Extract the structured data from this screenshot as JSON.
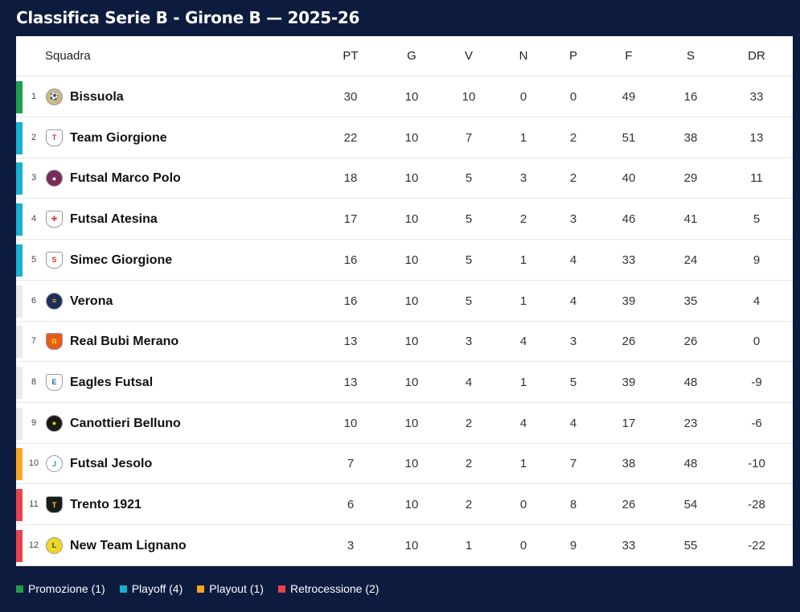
{
  "title": "Classifica Serie B - Girone B — 2025-26",
  "headers": {
    "team": "Squadra",
    "pt": "PT",
    "g": "G",
    "v": "V",
    "n": "N",
    "p": "P",
    "f": "F",
    "s": "S",
    "dr": "DR"
  },
  "zone_colors": {
    "promozione": "#1e9e4a",
    "playoff": "#17b0cf",
    "playout": "#f5a623",
    "retrocessione": "#e8434d",
    "none": "#e9e9e9"
  },
  "rows": [
    {
      "pos": "1",
      "team": "Bissuola",
      "zone": "promozione",
      "logo": "bissuola-logo",
      "pt": "30",
      "g": "10",
      "v": "10",
      "n": "0",
      "p": "0",
      "f": "49",
      "s": "16",
      "dr": "33"
    },
    {
      "pos": "2",
      "team": "Team Giorgione",
      "zone": "playoff",
      "logo": "team-giorgione-logo",
      "pt": "22",
      "g": "10",
      "v": "7",
      "n": "1",
      "p": "2",
      "f": "51",
      "s": "38",
      "dr": "13"
    },
    {
      "pos": "3",
      "team": "Futsal Marco Polo",
      "zone": "playoff",
      "logo": "futsal-marco-polo-logo",
      "pt": "18",
      "g": "10",
      "v": "5",
      "n": "3",
      "p": "2",
      "f": "40",
      "s": "29",
      "dr": "11"
    },
    {
      "pos": "4",
      "team": "Futsal Atesina",
      "zone": "playoff",
      "logo": "futsal-atesina-logo",
      "pt": "17",
      "g": "10",
      "v": "5",
      "n": "2",
      "p": "3",
      "f": "46",
      "s": "41",
      "dr": "5"
    },
    {
      "pos": "5",
      "team": "Simec Giorgione",
      "zone": "playoff",
      "logo": "simec-giorgione-logo",
      "pt": "16",
      "g": "10",
      "v": "5",
      "n": "1",
      "p": "4",
      "f": "33",
      "s": "24",
      "dr": "9"
    },
    {
      "pos": "6",
      "team": "Verona",
      "zone": "none",
      "logo": "verona-logo",
      "pt": "16",
      "g": "10",
      "v": "5",
      "n": "1",
      "p": "4",
      "f": "39",
      "s": "35",
      "dr": "4"
    },
    {
      "pos": "7",
      "team": "Real Bubi Merano",
      "zone": "none",
      "logo": "real-bubi-merano-logo",
      "pt": "13",
      "g": "10",
      "v": "3",
      "n": "4",
      "p": "3",
      "f": "26",
      "s": "26",
      "dr": "0"
    },
    {
      "pos": "8",
      "team": "Eagles Futsal",
      "zone": "none",
      "logo": "eagles-futsal-logo",
      "pt": "13",
      "g": "10",
      "v": "4",
      "n": "1",
      "p": "5",
      "f": "39",
      "s": "48",
      "dr": "-9"
    },
    {
      "pos": "9",
      "team": "Canottieri Belluno",
      "zone": "none",
      "logo": "canottieri-belluno-logo",
      "pt": "10",
      "g": "10",
      "v": "2",
      "n": "4",
      "p": "4",
      "f": "17",
      "s": "23",
      "dr": "-6"
    },
    {
      "pos": "10",
      "team": "Futsal Jesolo",
      "zone": "playout",
      "logo": "futsal-jesolo-logo",
      "pt": "7",
      "g": "10",
      "v": "2",
      "n": "1",
      "p": "7",
      "f": "38",
      "s": "48",
      "dr": "-10"
    },
    {
      "pos": "11",
      "team": "Trento 1921",
      "zone": "retrocessione",
      "logo": "trento-1921-logo",
      "pt": "6",
      "g": "10",
      "v": "2",
      "n": "0",
      "p": "8",
      "f": "26",
      "s": "54",
      "dr": "-28"
    },
    {
      "pos": "12",
      "team": "New Team Lignano",
      "zone": "retrocessione",
      "logo": "new-team-lignano-logo",
      "pt": "3",
      "g": "10",
      "v": "1",
      "n": "0",
      "p": "9",
      "f": "33",
      "s": "55",
      "dr": "-22"
    }
  ],
  "legend": [
    {
      "label": "Promozione (1)",
      "zone": "promozione"
    },
    {
      "label": "Playoff (4)",
      "zone": "playoff"
    },
    {
      "label": "Playout (1)",
      "zone": "playout"
    },
    {
      "label": "Retrocessione (2)",
      "zone": "retrocessione"
    }
  ]
}
